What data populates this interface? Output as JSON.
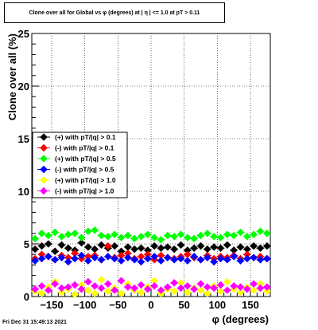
{
  "title": "Clone  over all for Global vs φ (degrees) at |  η | <= 1.0 at pT > 0.11",
  "footer": "Fri Dec 31 15:49:13 2021",
  "chart_data": {
    "type": "scatter",
    "xlabel": "φ (degrees)",
    "ylabel": "Clone  over all (%)",
    "xlim": [
      -180,
      180
    ],
    "ylim": [
      0,
      25
    ],
    "x_ticks": [
      "−150",
      "−100",
      "−50",
      "0",
      "50",
      "100",
      "150"
    ],
    "y_ticks": [
      "0",
      "5",
      "10",
      "15",
      "20",
      "25"
    ],
    "grid": true,
    "legend_position": "middle-left",
    "x": [
      -175,
      -165,
      -155,
      -145,
      -135,
      -125,
      -115,
      -105,
      -95,
      -85,
      -75,
      -65,
      -55,
      -45,
      -35,
      -25,
      -15,
      -5,
      5,
      15,
      25,
      35,
      45,
      55,
      65,
      75,
      85,
      95,
      105,
      115,
      125,
      135,
      145,
      155,
      165,
      175
    ],
    "series": [
      {
        "name": "(+) with pT/|q| > 0.1",
        "color": "#000000",
        "marker": "diamond",
        "values": [
          4.5,
          4.8,
          5.0,
          4.3,
          4.9,
          4.6,
          4.4,
          5.1,
          4.7,
          4.5,
          4.9,
          4.6,
          4.8,
          4.3,
          4.7,
          4.5,
          4.6,
          4.4,
          4.8,
          4.6,
          4.7,
          4.5,
          4.9,
          4.4,
          4.6,
          4.8,
          4.5,
          4.7,
          4.6,
          4.9,
          4.4,
          4.7,
          4.5,
          4.8,
          4.6,
          4.8
        ]
      },
      {
        "name": "(-) with pT/|q| > 0.1",
        "color": "#ff0000",
        "marker": "diamond",
        "values": [
          3.6,
          4.0,
          3.8,
          3.5,
          3.9,
          3.7,
          4.1,
          3.6,
          3.8,
          3.9,
          3.5,
          4.8,
          3.7,
          3.9,
          4.1,
          3.6,
          3.8,
          4.0,
          3.5,
          3.9,
          3.7,
          3.6,
          3.8,
          4.0,
          3.7,
          3.5,
          3.9,
          3.6,
          3.8,
          3.7,
          3.9,
          3.6,
          4.0,
          3.7,
          3.8,
          3.6
        ]
      },
      {
        "name": "(+) with pT/|q| > 0.5",
        "color": "#00ff00",
        "marker": "diamond",
        "values": [
          5.5,
          6.0,
          5.8,
          6.1,
          5.7,
          5.9,
          6.0,
          5.6,
          6.2,
          6.3,
          5.8,
          5.7,
          5.9,
          5.6,
          5.8,
          5.5,
          5.7,
          5.9,
          5.6,
          5.4,
          5.8,
          5.7,
          5.9,
          5.6,
          5.5,
          5.8,
          6.0,
          5.7,
          5.6,
          5.9,
          5.8,
          6.1,
          5.7,
          5.9,
          6.2,
          6.0
        ]
      },
      {
        "name": "(-) with pT/|q| > 0.5",
        "color": "#0000ff",
        "marker": "diamond",
        "values": [
          3.4,
          3.6,
          3.8,
          3.5,
          3.7,
          3.3,
          3.6,
          3.9,
          3.4,
          3.7,
          3.5,
          3.8,
          3.6,
          3.4,
          3.7,
          3.5,
          3.3,
          3.6,
          3.8,
          3.4,
          3.7,
          3.5,
          3.6,
          3.4,
          3.8,
          3.5,
          3.7,
          3.3,
          3.6,
          3.5,
          3.8,
          3.4,
          3.6,
          3.7,
          3.5,
          3.6
        ]
      },
      {
        "name": "(+) with pT/|q| > 1.0",
        "color": "#ffff00",
        "marker": "diamond",
        "values": [
          0.5,
          0.3,
          0.9,
          1.4,
          0.4,
          0.7,
          0.2,
          1.1,
          0.6,
          0.3,
          1.6,
          0.5,
          0.8,
          0.3,
          1.2,
          0.6,
          0.4,
          0.9,
          1.5,
          0.3,
          0.7,
          0.5,
          1.3,
          0.4,
          0.8,
          0.6,
          0.3,
          1.0,
          0.5,
          1.4,
          0.7,
          0.4,
          0.9,
          0.6,
          1.2,
          0.5
        ]
      },
      {
        "name": "(-) with pT/|q| > 1.0",
        "color": "#ff00ff",
        "marker": "diamond",
        "values": [
          0.7,
          1.0,
          0.6,
          1.2,
          0.8,
          0.9,
          1.1,
          0.7,
          1.4,
          1.0,
          0.8,
          1.2,
          0.6,
          1.5,
          0.9,
          0.8,
          1.1,
          0.7,
          1.0,
          0.6,
          0.9,
          1.3,
          0.8,
          1.0,
          0.7,
          1.2,
          0.9,
          0.8,
          1.1,
          0.6,
          1.0,
          0.9,
          0.7,
          1.2,
          0.8,
          0.9
        ]
      }
    ]
  }
}
